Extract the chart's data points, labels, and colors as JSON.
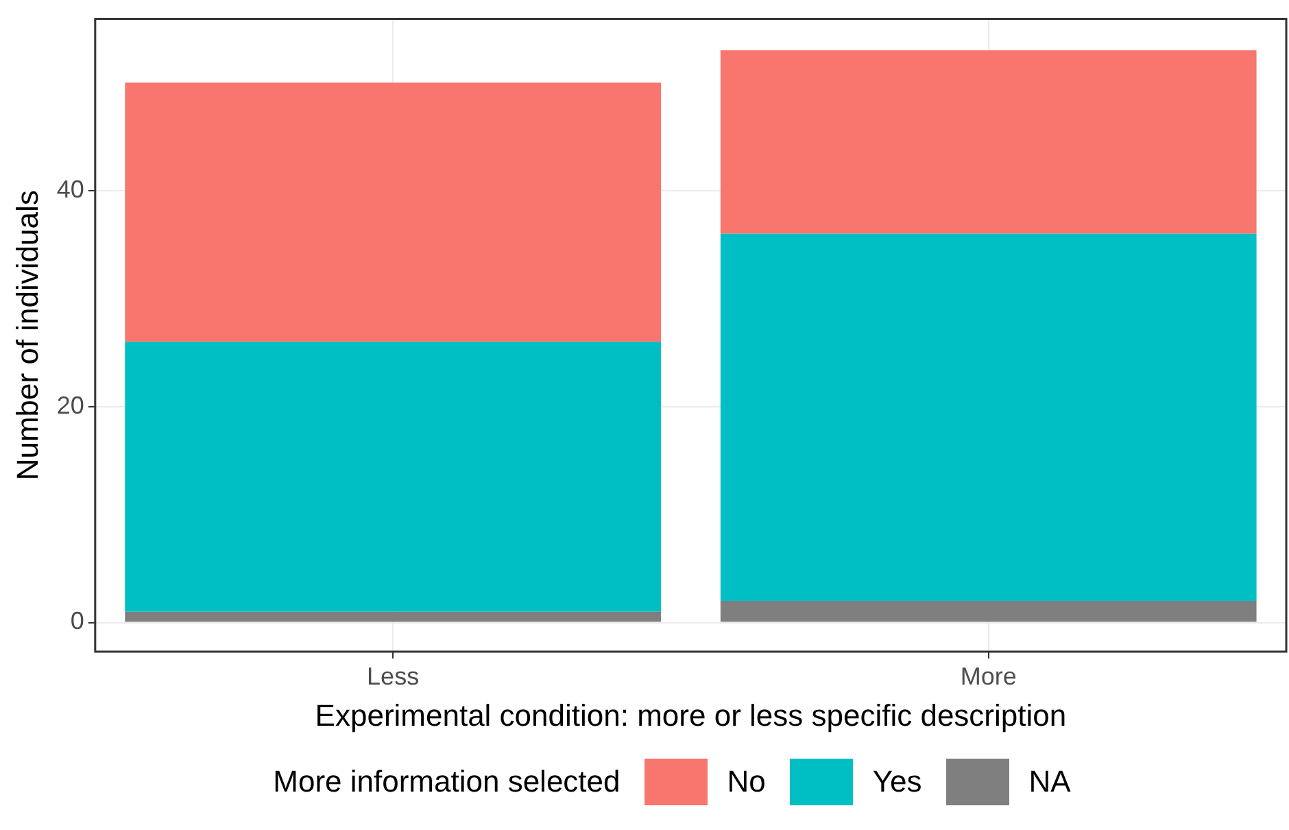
{
  "chart_data": {
    "type": "bar",
    "stacked": true,
    "xlabel": "Experimental condition: more or less specific description",
    "ylabel": "Number of individuals",
    "legend_title": "More information selected",
    "legend": "bottom",
    "grid": true,
    "categories": [
      "Less",
      "More"
    ],
    "series": [
      {
        "name": "NA",
        "color": "#7f7f7f",
        "values": [
          1,
          2
        ]
      },
      {
        "name": "Yes",
        "color": "#00bfc4",
        "values": [
          25,
          34
        ]
      },
      {
        "name": "No",
        "color": "#f8766d",
        "values": [
          24,
          17
        ]
      }
    ],
    "ylim": [
      -2.7,
      55.9
    ],
    "yticks": [
      0,
      20,
      40
    ]
  }
}
